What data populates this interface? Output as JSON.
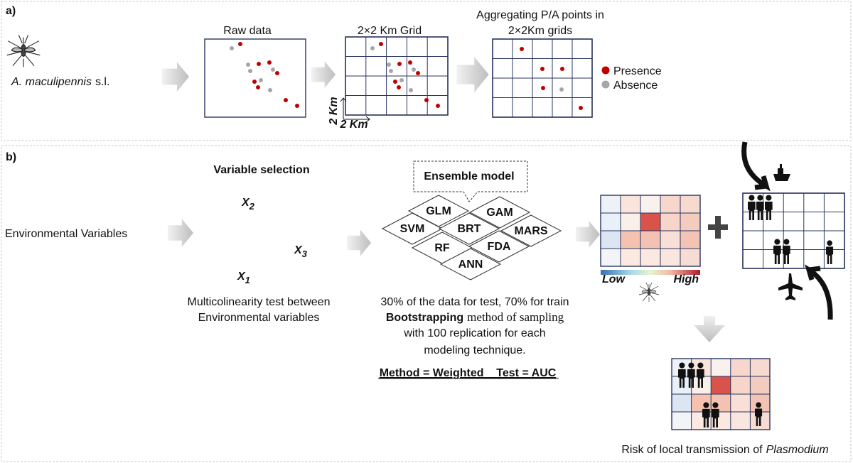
{
  "panel_a": {
    "label": "a)",
    "species": {
      "name": "A. maculipennis",
      "suffix": "s.l."
    },
    "raw_data_title": "Raw data",
    "grid_title": "2×2 Km Grid",
    "aggregate_title": [
      "Aggregating  P/A points in",
      "2×2Km grids"
    ],
    "axis_y": "2 Km",
    "axis_x": "2 Km",
    "legend": [
      "Presence",
      "Absence"
    ]
  },
  "panel_b": {
    "label": "b)",
    "input": "Environmental Variables",
    "variable_selection": {
      "title": "Variable selection",
      "variables": [
        {
          "name": "X",
          "sub": "2"
        },
        {
          "name": "X",
          "sub": "3"
        },
        {
          "name": "X",
          "sub": "1"
        }
      ],
      "caption": [
        "Multicolinearity test between",
        "Environmental variables"
      ]
    },
    "ensemble": {
      "title": "Ensemble model",
      "models": [
        "GLM",
        "GAM",
        "SVM",
        "BRT",
        "MARS",
        "RF",
        "FDA",
        "ANN"
      ]
    },
    "sampling": {
      "line1": "30% of the data for test, 70% for train",
      "bold": "Bootstrapping",
      "rest": "method of sampling",
      "line3": "with 100 replication for each",
      "line4": "modeling technique.",
      "method": "Method = Weighted _ Test = AUC"
    },
    "scale": {
      "low": "Low",
      "high": "High"
    },
    "risk": {
      "text": "Risk of local transmission of",
      "italic": "Plasmodium"
    }
  }
}
